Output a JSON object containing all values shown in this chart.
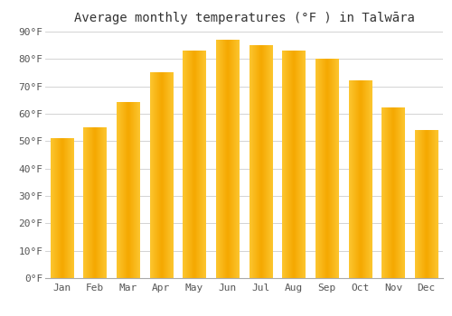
{
  "title": "Average monthly temperatures (°F ) in Talwāra",
  "months": [
    "Jan",
    "Feb",
    "Mar",
    "Apr",
    "May",
    "Jun",
    "Jul",
    "Aug",
    "Sep",
    "Oct",
    "Nov",
    "Dec"
  ],
  "values": [
    51,
    55,
    64,
    75,
    83,
    87,
    85,
    83,
    80,
    72,
    62,
    54
  ],
  "bar_color": "#FFA500",
  "bar_color_light": "#FFD000",
  "background_color": "#FFFFFF",
  "grid_color": "#CCCCCC",
  "ylim": [
    0,
    90
  ],
  "yticks": [
    0,
    10,
    20,
    30,
    40,
    50,
    60,
    70,
    80,
    90
  ],
  "ytick_labels": [
    "0°F",
    "10°F",
    "20°F",
    "30°F",
    "40°F",
    "50°F",
    "60°F",
    "70°F",
    "80°F",
    "90°F"
  ],
  "title_fontsize": 10,
  "tick_fontsize": 8,
  "title_color": "#333333",
  "tick_color": "#555555"
}
